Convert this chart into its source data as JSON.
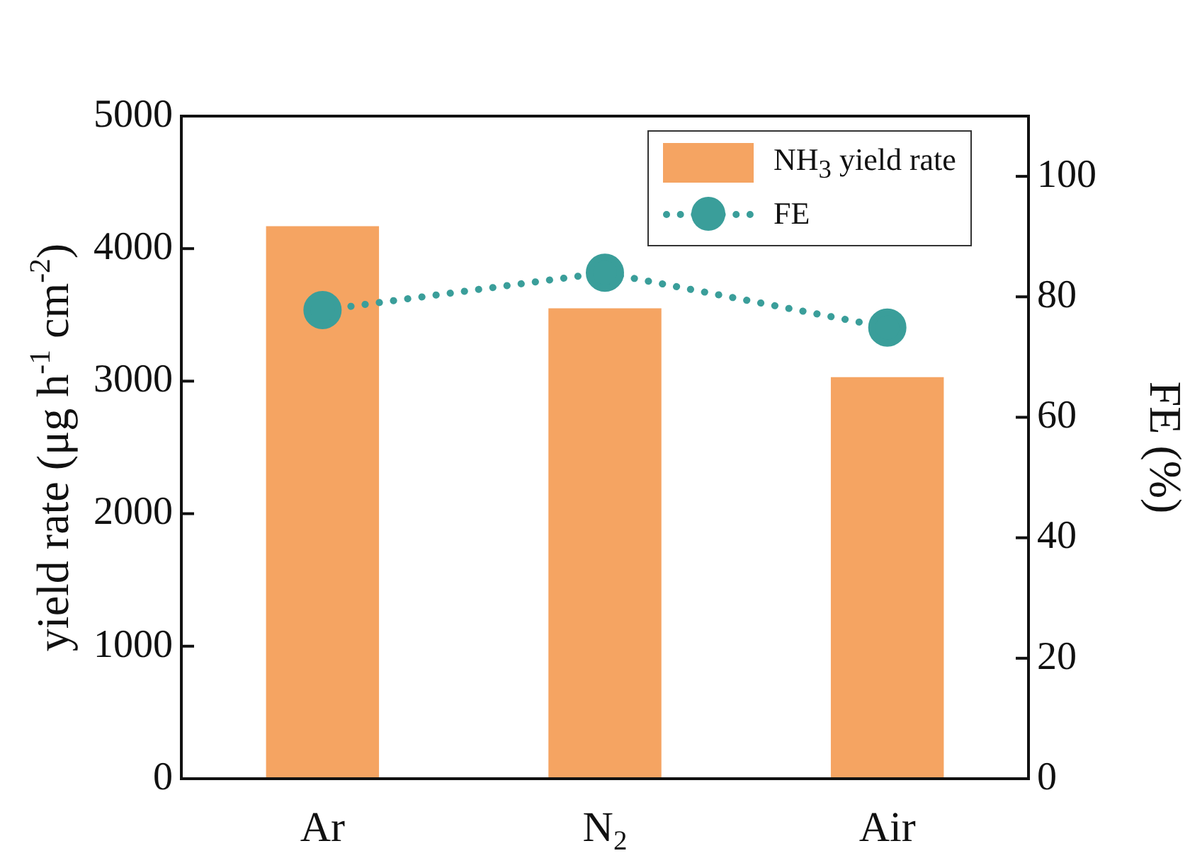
{
  "chart_data": {
    "type": "bar",
    "ylabel": "yield rate (μg h$^{-1}$ cm$^{-2}$)",
    "y2label": "FE (%)",
    "categories": [
      "Ar",
      "N$_{2}$",
      "Air"
    ],
    "series": [
      {
        "name": "NH$_{3}$ yield rate",
        "color": "#f5a462",
        "values": [
          4170,
          3550,
          3030
        ]
      },
      {
        "name": "FE",
        "type": "line",
        "axis": "y2",
        "color": "#3a9e9a",
        "values": [
          77.8,
          84.0,
          74.9
        ],
        "marker": "circle",
        "line_style": "dotted"
      }
    ],
    "ylim": [
      0,
      5000
    ],
    "yticks": [
      0,
      1000,
      2000,
      3000,
      4000,
      5000
    ],
    "y2lim": [
      0,
      110
    ],
    "y2ticks": [
      0,
      20,
      40,
      60,
      80,
      100
    ],
    "grid": false,
    "legend": "top right"
  }
}
